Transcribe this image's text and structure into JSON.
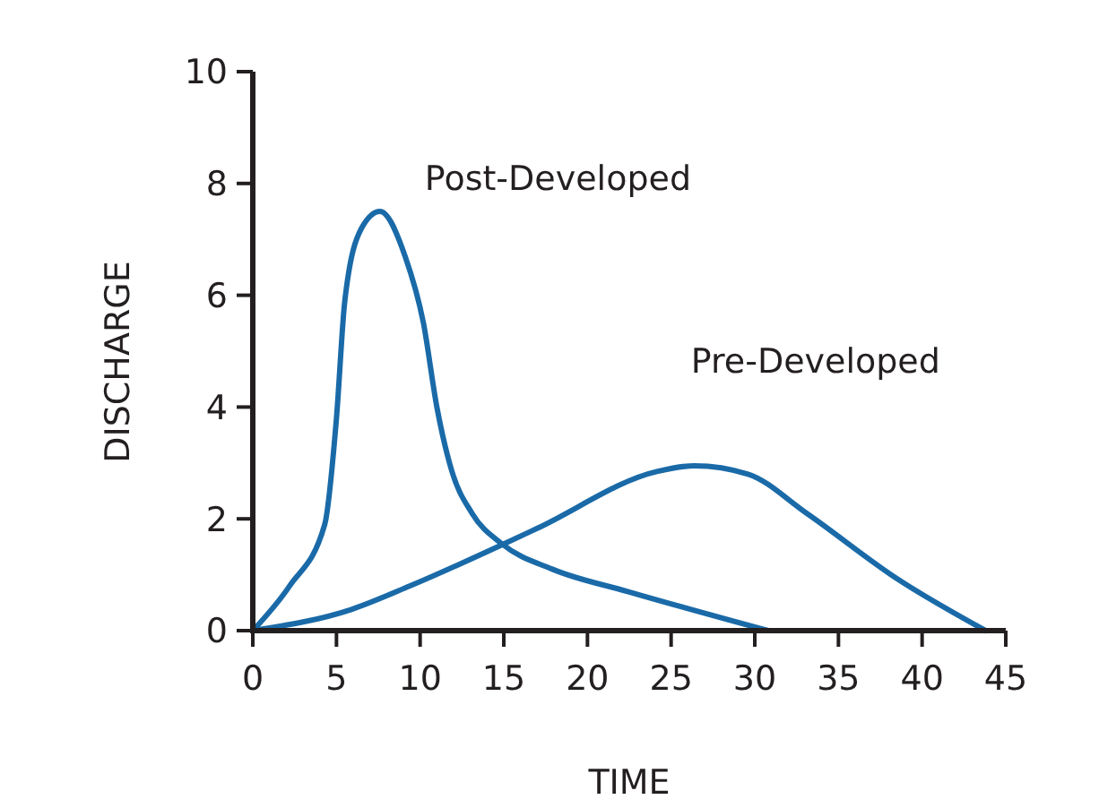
{
  "chart_data": {
    "type": "line",
    "xlabel": "TIME",
    "ylabel": "DISCHARGE",
    "xlim": [
      0,
      45
    ],
    "ylim": [
      0,
      10
    ],
    "xticks": [
      0,
      5,
      10,
      15,
      20,
      25,
      30,
      35,
      40,
      45
    ],
    "yticks": [
      0,
      2,
      4,
      6,
      8,
      10
    ],
    "grid": false,
    "marker": "none",
    "line_style": "solid",
    "series": [
      {
        "name": "Post-Developed",
        "color": "#1a6aa8",
        "x": [
          0,
          2.2,
          4.3,
          5,
          5.5,
          6.5,
          7.6,
          9.1,
          10.2,
          11,
          11.9,
          13.1,
          14.9,
          17.9,
          22.4,
          30.8
        ],
        "values": [
          0,
          0.8,
          1.9,
          3.8,
          5.9,
          7.2,
          7.5,
          6.7,
          5.5,
          4.0,
          2.85,
          2.1,
          1.55,
          1.1,
          0.7,
          0
        ]
      },
      {
        "name": "Pre-Developed",
        "color": "#1a6aa8",
        "x": [
          0,
          5.9,
          9.4,
          15,
          17,
          24.2,
          26.4,
          29.6,
          33.1,
          38.5,
          43.8
        ],
        "values": [
          0,
          0.38,
          0.8,
          1.55,
          1.83,
          2.85,
          2.95,
          2.8,
          2.1,
          0.93,
          0
        ]
      }
    ]
  }
}
